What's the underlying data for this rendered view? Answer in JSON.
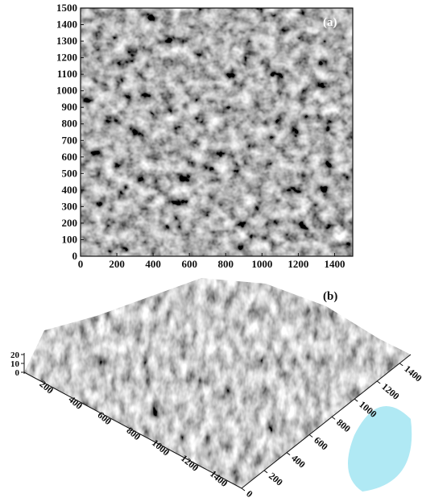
{
  "panel_a": {
    "label": "(a)",
    "x_ticks": [
      0,
      200,
      400,
      600,
      800,
      1000,
      1200,
      1400
    ],
    "y_ticks": [
      0,
      100,
      200,
      300,
      400,
      500,
      600,
      700,
      800,
      900,
      1000,
      1100,
      1200,
      1300,
      1400,
      1500
    ]
  },
  "panel_b": {
    "label": "(b)",
    "z_ticks": [
      0,
      10,
      20
    ],
    "left_axis_ticks": [
      200,
      400,
      600,
      800,
      1000,
      1200,
      1400
    ],
    "right_axis_ticks": [
      0,
      200,
      400,
      600,
      800,
      1000,
      1200,
      1400
    ]
  }
}
